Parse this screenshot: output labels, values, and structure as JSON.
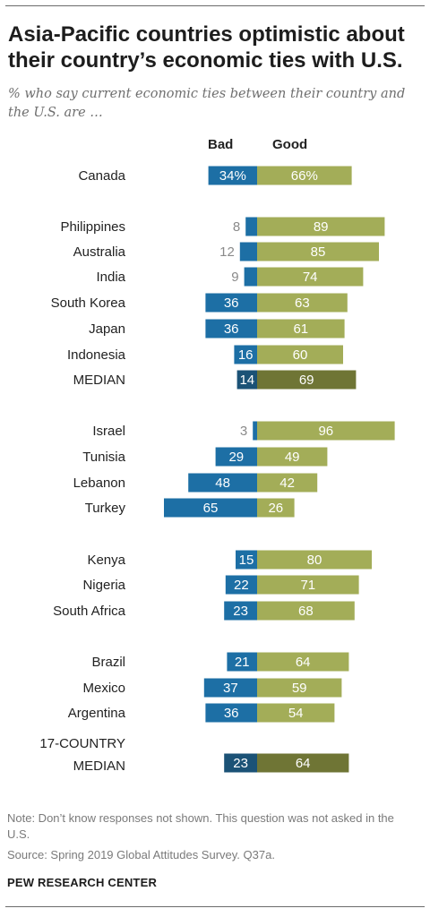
{
  "title": "Asia-Pacific countries optimistic about their country’s economic ties with U.S.",
  "subtitle": "% who say current economic ties between their country and the U.S. are …",
  "note": "Note: Don’t know responses not shown. This question was not asked in the U.S.",
  "source": "Source: Spring 2019 Global Attitudes Survey. Q37a.",
  "brand": "PEW RESEARCH CENTER",
  "colors": {
    "bad": "#1d6fa5",
    "good": "#a3ad58",
    "bad_median": "#1b5276",
    "good_median": "#6f7535",
    "outside_label": "#8a8a8a"
  },
  "chart_data": {
    "type": "bar",
    "orientation": "horizontal-diverging",
    "series": [
      {
        "name": "Bad",
        "values": [
          34,
          8,
          12,
          9,
          36,
          36,
          16,
          14,
          3,
          29,
          48,
          65,
          15,
          22,
          23,
          21,
          37,
          36,
          23
        ]
      },
      {
        "name": "Good",
        "values": [
          66,
          89,
          85,
          74,
          63,
          61,
          60,
          69,
          96,
          49,
          42,
          26,
          80,
          71,
          68,
          64,
          59,
          54,
          64
        ]
      }
    ],
    "rows": [
      {
        "label": "Canada",
        "bad": 34,
        "good": 66,
        "bad_text": "34%",
        "good_text": "66%"
      },
      {
        "label": "Philippines",
        "bad": 8,
        "good": 89,
        "bad_text": "8",
        "good_text": "89"
      },
      {
        "label": "Australia",
        "bad": 12,
        "good": 85,
        "bad_text": "12",
        "good_text": "85"
      },
      {
        "label": "India",
        "bad": 9,
        "good": 74,
        "bad_text": "9",
        "good_text": "74"
      },
      {
        "label": "South Korea",
        "bad": 36,
        "good": 63,
        "bad_text": "36",
        "good_text": "63"
      },
      {
        "label": "Japan",
        "bad": 36,
        "good": 61,
        "bad_text": "36",
        "good_text": "61"
      },
      {
        "label": "Indonesia",
        "bad": 16,
        "good": 60,
        "bad_text": "16",
        "good_text": "60"
      },
      {
        "label": "MEDIAN",
        "bad": 14,
        "good": 69,
        "bad_text": "14",
        "good_text": "69",
        "median": true
      },
      {
        "label": "Israel",
        "bad": 3,
        "good": 96,
        "bad_text": "3",
        "good_text": "96"
      },
      {
        "label": "Tunisia",
        "bad": 29,
        "good": 49,
        "bad_text": "29",
        "good_text": "49"
      },
      {
        "label": "Lebanon",
        "bad": 48,
        "good": 42,
        "bad_text": "48",
        "good_text": "42"
      },
      {
        "label": "Turkey",
        "bad": 65,
        "good": 26,
        "bad_text": "65",
        "good_text": "26"
      },
      {
        "label": "Kenya",
        "bad": 15,
        "good": 80,
        "bad_text": "15",
        "good_text": "80"
      },
      {
        "label": "Nigeria",
        "bad": 22,
        "good": 71,
        "bad_text": "22",
        "good_text": "71"
      },
      {
        "label": "South Africa",
        "bad": 23,
        "good": 68,
        "bad_text": "23",
        "good_text": "68"
      },
      {
        "label": "Brazil",
        "bad": 21,
        "good": 64,
        "bad_text": "21",
        "good_text": "64"
      },
      {
        "label": "Mexico",
        "bad": 37,
        "good": 59,
        "bad_text": "37",
        "good_text": "59"
      },
      {
        "label": "Argentina",
        "bad": 36,
        "good": 54,
        "bad_text": "36",
        "good_text": "54"
      },
      {
        "label": "17-COUNTRY MEDIAN",
        "label_lines": [
          "17-COUNTRY",
          "MEDIAN"
        ],
        "bad": 23,
        "good": 64,
        "bad_text": "23",
        "good_text": "64",
        "median": true
      }
    ],
    "legend": [
      "Bad",
      "Good"
    ],
    "legend_position": "top",
    "grid": false
  }
}
